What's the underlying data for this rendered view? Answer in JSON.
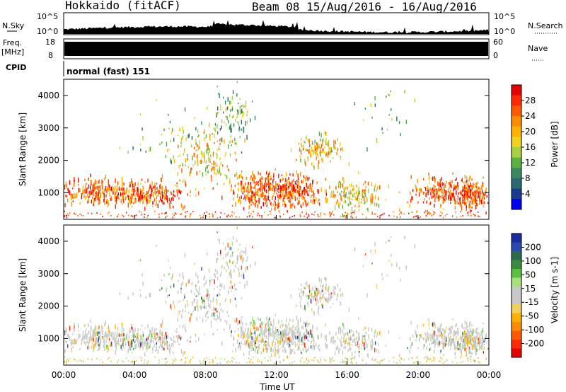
{
  "header": {
    "station": "Hokkaido (fitACF)",
    "beam_range": "Beam 08  15/Aug/2016 - 16/Aug/2016"
  },
  "top_strip": {
    "nsky_label": "N.Sky",
    "nsky_ticks": [
      "10^5",
      "10^0"
    ],
    "nsearch_label": "N.Search",
    "nsearch_ticks": [
      "10^5",
      "10^0"
    ],
    "freq_label": "Freq.",
    "freq_unit": "[MHz]",
    "freq_ticks": [
      "18",
      "8"
    ],
    "nave_label": "Nave",
    "nave_ticks": [
      "60",
      "0"
    ],
    "cpid_label": "CPID",
    "cpid_text": "normal (fast) 151"
  },
  "panels": {
    "power": {
      "ylabel": "Slant Range [km]",
      "yticks": [
        "4000",
        "3000",
        "2000",
        "1000"
      ],
      "cbar_label": "Power [dB]",
      "cbar_ticks": [
        "28",
        "24",
        "20",
        "16",
        "12",
        "8",
        "4"
      ],
      "cbar_colors": [
        "#e60000",
        "#ff2a00",
        "#ff5a00",
        "#ff8c00",
        "#ffb000",
        "#f0d020",
        "#a8d040",
        "#5ab040",
        "#3a8a60",
        "#2a6a70",
        "#1a3a90",
        "#0000f0"
      ]
    },
    "velocity": {
      "ylabel": "Slant Range [km]",
      "yticks": [
        "4000",
        "3000",
        "2000",
        "1000"
      ],
      "cbar_label": "Velocity [m s-1]",
      "cbar_ticks": [
        "200",
        "100",
        "50",
        "15",
        "-15",
        "-50",
        "-100",
        "-200"
      ],
      "cbar_colors": [
        "#1a2aa0",
        "#2a4ab0",
        "#2a6a50",
        "#3a8a40",
        "#5ac040",
        "#a8e080",
        "#c8c8c8",
        "#c8c8c8",
        "#f0d060",
        "#ffb000",
        "#ff8c00",
        "#ff5a00",
        "#ff2a00",
        "#e60000"
      ]
    }
  },
  "xaxis": {
    "ticks": [
      "00:00",
      "04:00",
      "08:00",
      "12:00",
      "16:00",
      "20:00",
      "00:00"
    ],
    "label": "Time UT"
  },
  "chart_data": {
    "type": "heatmap",
    "title": "Hokkaido (fitACF)  Beam 08  15/Aug/2016 - 16/Aug/2016",
    "xlabel": "Time UT",
    "ylabel": "Slant Range [km]",
    "xlim": [
      0,
      24
    ],
    "ylim": [
      180,
      4500
    ],
    "power_colorbar": {
      "label": "Power [dB]",
      "range": [
        0,
        32
      ],
      "ticks": [
        4,
        8,
        12,
        16,
        20,
        24,
        28
      ]
    },
    "velocity_colorbar": {
      "label": "Velocity [m s-1]",
      "range": [
        -250,
        250
      ],
      "ticks": [
        -200,
        -100,
        -50,
        -15,
        15,
        50,
        100,
        200
      ]
    },
    "freq_ylim": [
      8,
      18
    ],
    "nave_ylim": [
      0,
      60
    ]
  }
}
